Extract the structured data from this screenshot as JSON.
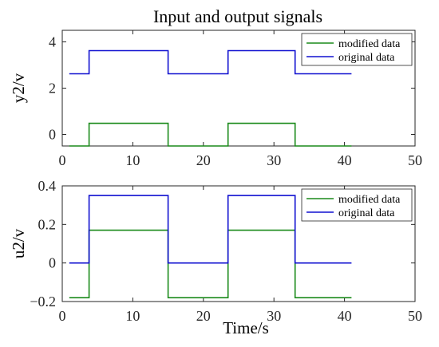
{
  "title": "Input and output signals",
  "colors": {
    "modified": "#1a8a1a",
    "original": "#1010d0",
    "axis": "#262626"
  },
  "chart_data": [
    {
      "type": "line",
      "ylabel": "y2/v",
      "xlabel": "",
      "xlim": [
        0,
        50
      ],
      "ylim": [
        -0.5,
        4.5
      ],
      "xticks": [
        0,
        10,
        20,
        30,
        40,
        50
      ],
      "yticks": [
        0,
        2,
        4
      ],
      "legend": "top-right",
      "series": [
        {
          "name": "modified data",
          "color": "#1a8a1a",
          "points": [
            [
              1,
              -0.5
            ],
            [
              3.8,
              -0.5
            ],
            [
              3.8,
              0.48
            ],
            [
              15,
              0.48
            ],
            [
              15,
              -0.5
            ],
            [
              23.5,
              -0.5
            ],
            [
              23.5,
              0.48
            ],
            [
              33,
              0.48
            ],
            [
              33,
              -0.5
            ],
            [
              41,
              -0.5
            ]
          ]
        },
        {
          "name": "original data",
          "color": "#1010d0",
          "points": [
            [
              1,
              2.62
            ],
            [
              3.8,
              2.62
            ],
            [
              3.8,
              3.62
            ],
            [
              15,
              3.62
            ],
            [
              15,
              2.62
            ],
            [
              23.5,
              2.62
            ],
            [
              23.5,
              3.62
            ],
            [
              33,
              3.62
            ],
            [
              33,
              2.62
            ],
            [
              41,
              2.62
            ]
          ]
        }
      ]
    },
    {
      "type": "line",
      "ylabel": "u2/v",
      "xlabel": "Time/s",
      "xlim": [
        0,
        50
      ],
      "ylim": [
        -0.2,
        0.4
      ],
      "xticks": [
        0,
        10,
        20,
        30,
        40,
        50
      ],
      "yticks": [
        -0.2,
        0,
        0.2,
        0.4
      ],
      "ytick_labels": [
        "−0.2",
        "0",
        "0.2",
        "0.4"
      ],
      "legend": "top-right",
      "series": [
        {
          "name": "modified data",
          "color": "#1a8a1a",
          "points": [
            [
              1,
              -0.18
            ],
            [
              3.8,
              -0.18
            ],
            [
              3.8,
              0.17
            ],
            [
              15,
              0.17
            ],
            [
              15,
              -0.18
            ],
            [
              23.5,
              -0.18
            ],
            [
              23.5,
              0.17
            ],
            [
              33,
              0.17
            ],
            [
              33,
              -0.18
            ],
            [
              41,
              -0.18
            ]
          ]
        },
        {
          "name": "original data",
          "color": "#1010d0",
          "points": [
            [
              1,
              0
            ],
            [
              3.8,
              0
            ],
            [
              3.8,
              0.35
            ],
            [
              15,
              0.35
            ],
            [
              15,
              0
            ],
            [
              23.5,
              0
            ],
            [
              23.5,
              0.35
            ],
            [
              33,
              0.35
            ],
            [
              33,
              0
            ],
            [
              41,
              0
            ]
          ]
        }
      ]
    }
  ]
}
